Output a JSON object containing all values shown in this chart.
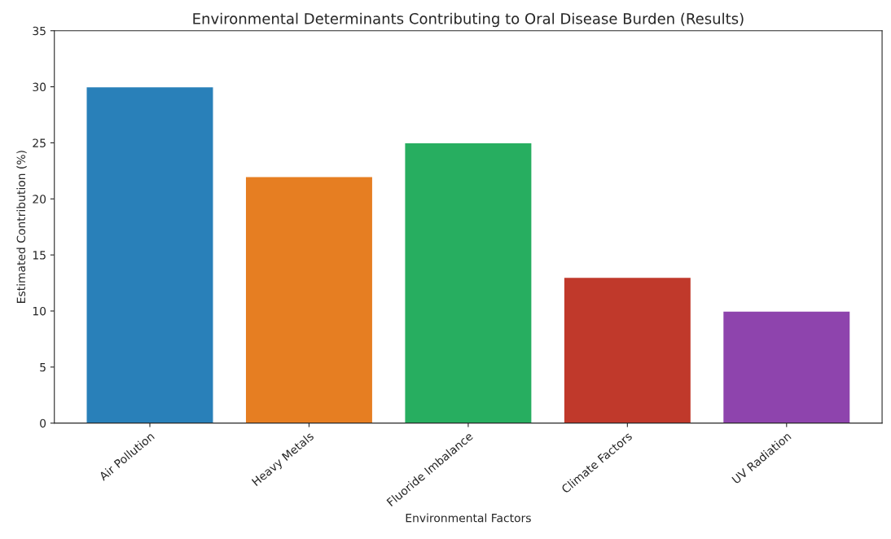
{
  "chart_data": {
    "type": "bar",
    "title": "Environmental Determinants Contributing to Oral Disease Burden (Results)",
    "xlabel": "Environmental Factors",
    "ylabel": "Estimated Contribution (%)",
    "categories": [
      "Air Pollution",
      "Heavy Metals",
      "Fluoride Imbalance",
      "Climate Factors",
      "UV Radiation"
    ],
    "values": [
      30,
      22,
      25,
      13,
      10
    ],
    "colors": [
      "#2980b9",
      "#e67e22",
      "#27ae60",
      "#c0392b",
      "#8e44ad"
    ],
    "ylim": [
      0,
      35
    ],
    "yticks": [
      0,
      5,
      10,
      15,
      20,
      25,
      30,
      35
    ],
    "grid": false
  }
}
